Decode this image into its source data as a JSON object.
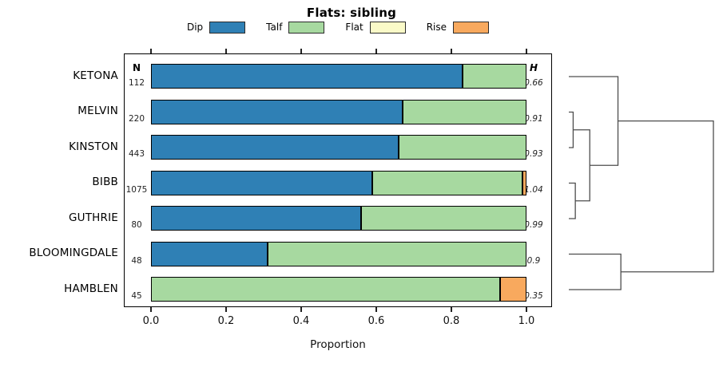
{
  "chart_data": {
    "type": "bar",
    "variant": "horizontal-stacked-proportion-with-dendrogram",
    "title": "Flats: sibling",
    "xlabel": "Proportion",
    "xlim": [
      0.0,
      1.0
    ],
    "xticks": [
      0.0,
      0.2,
      0.4,
      0.6,
      0.8,
      1.0
    ],
    "legend_position": "top",
    "grid": false,
    "legend": [
      {
        "label": "Dip",
        "color": "#2f80b5"
      },
      {
        "label": "Talf",
        "color": "#a7d9a0"
      },
      {
        "label": "Flat",
        "color": "#fafac8"
      },
      {
        "label": "Rise",
        "color": "#f8a95e"
      }
    ],
    "columns": {
      "left_header": "N",
      "right_header": "H"
    },
    "categories": [
      "KETONA",
      "MELVIN",
      "KINSTON",
      "BIBB",
      "GUTHRIE",
      "BLOOMINGDALE",
      "HAMBLEN"
    ],
    "rows": [
      {
        "label": "KETONA",
        "n": "112",
        "h": "0.66",
        "segments": [
          {
            "name": "Dip",
            "value": 0.83
          },
          {
            "name": "Talf",
            "value": 0.17
          }
        ]
      },
      {
        "label": "MELVIN",
        "n": "220",
        "h": "0.91",
        "segments": [
          {
            "name": "Dip",
            "value": 0.67
          },
          {
            "name": "Talf",
            "value": 0.33
          }
        ]
      },
      {
        "label": "KINSTON",
        "n": "443",
        "h": "0.93",
        "segments": [
          {
            "name": "Dip",
            "value": 0.66
          },
          {
            "name": "Talf",
            "value": 0.34
          }
        ]
      },
      {
        "label": "BIBB",
        "n": "1075",
        "h": "1.04",
        "segments": [
          {
            "name": "Dip",
            "value": 0.59
          },
          {
            "name": "Talf",
            "value": 0.4
          },
          {
            "name": "Rise",
            "value": 0.01
          }
        ]
      },
      {
        "label": "GUTHRIE",
        "n": "80",
        "h": "0.99",
        "segments": [
          {
            "name": "Dip",
            "value": 0.56
          },
          {
            "name": "Talf",
            "value": 0.44
          }
        ]
      },
      {
        "label": "BLOOMINGDALE",
        "n": "48",
        "h": "0.9",
        "segments": [
          {
            "name": "Dip",
            "value": 0.31
          },
          {
            "name": "Talf",
            "value": 0.69
          }
        ]
      },
      {
        "label": "HAMBLEN",
        "n": "45",
        "h": "0.35",
        "segments": [
          {
            "name": "Talf",
            "value": 0.93
          },
          {
            "name": "Rise",
            "value": 0.07
          }
        ]
      }
    ],
    "dendrogram": {
      "topology": "((KETONA,((MELVIN,KINSTON),(BIBB,GUTHRIE))),(BLOOMINGDALE,HAMBLEN))",
      "merges": [
        {
          "a": -2,
          "b": -3,
          "height": 0.03
        },
        {
          "a": -4,
          "b": -5,
          "height": 0.045
        },
        {
          "a": 1,
          "b": 2,
          "height": 0.145
        },
        {
          "a": -1,
          "b": 3,
          "height": 0.34
        },
        {
          "a": -6,
          "b": -7,
          "height": 0.36
        },
        {
          "a": 4,
          "b": 5,
          "height": 1.0
        }
      ]
    }
  }
}
